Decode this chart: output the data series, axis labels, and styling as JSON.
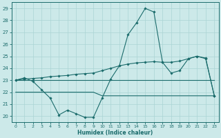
{
  "title": "",
  "xlabel": "Humidex (Indice chaleur)",
  "ylabel": "",
  "background_color": "#cce9e9",
  "grid_color": "#aad4d4",
  "line_color": "#1a6b6b",
  "xlim": [
    -0.5,
    23.5
  ],
  "ylim": [
    19.5,
    29.5
  ],
  "yticks": [
    20,
    21,
    22,
    23,
    24,
    25,
    26,
    27,
    28,
    29
  ],
  "xticks": [
    0,
    1,
    2,
    3,
    4,
    5,
    6,
    7,
    8,
    9,
    10,
    11,
    12,
    13,
    14,
    15,
    16,
    17,
    18,
    19,
    20,
    21,
    22,
    23
  ],
  "series1_x": [
    0,
    1,
    2,
    3,
    4,
    5,
    6,
    7,
    8,
    9,
    10,
    11,
    12,
    13,
    14,
    15,
    16,
    17,
    18,
    19,
    20,
    21,
    22,
    23
  ],
  "series1_y": [
    23.0,
    23.2,
    22.9,
    22.2,
    21.5,
    20.1,
    20.5,
    20.2,
    19.9,
    19.9,
    21.5,
    23.1,
    24.2,
    26.8,
    27.8,
    29.0,
    28.7,
    24.5,
    23.6,
    23.8,
    24.8,
    25.0,
    24.8,
    21.7
  ],
  "series2_x": [
    0,
    1,
    2,
    3,
    4,
    5,
    6,
    7,
    8,
    9,
    10,
    11,
    12,
    13,
    14,
    15,
    16,
    17,
    18,
    19,
    20,
    21,
    22,
    23
  ],
  "series2_y": [
    23.0,
    23.1,
    23.15,
    23.2,
    23.3,
    23.35,
    23.4,
    23.5,
    23.55,
    23.6,
    23.8,
    24.0,
    24.2,
    24.35,
    24.45,
    24.5,
    24.55,
    24.5,
    24.5,
    24.6,
    24.8,
    25.0,
    24.85,
    21.7
  ],
  "series3_x": [
    0,
    23
  ],
  "series3_y": [
    23.0,
    23.0
  ],
  "series4_x": [
    0,
    9,
    10,
    22,
    23
  ],
  "series4_y": [
    22.0,
    22.0,
    21.7,
    21.7,
    21.7
  ]
}
